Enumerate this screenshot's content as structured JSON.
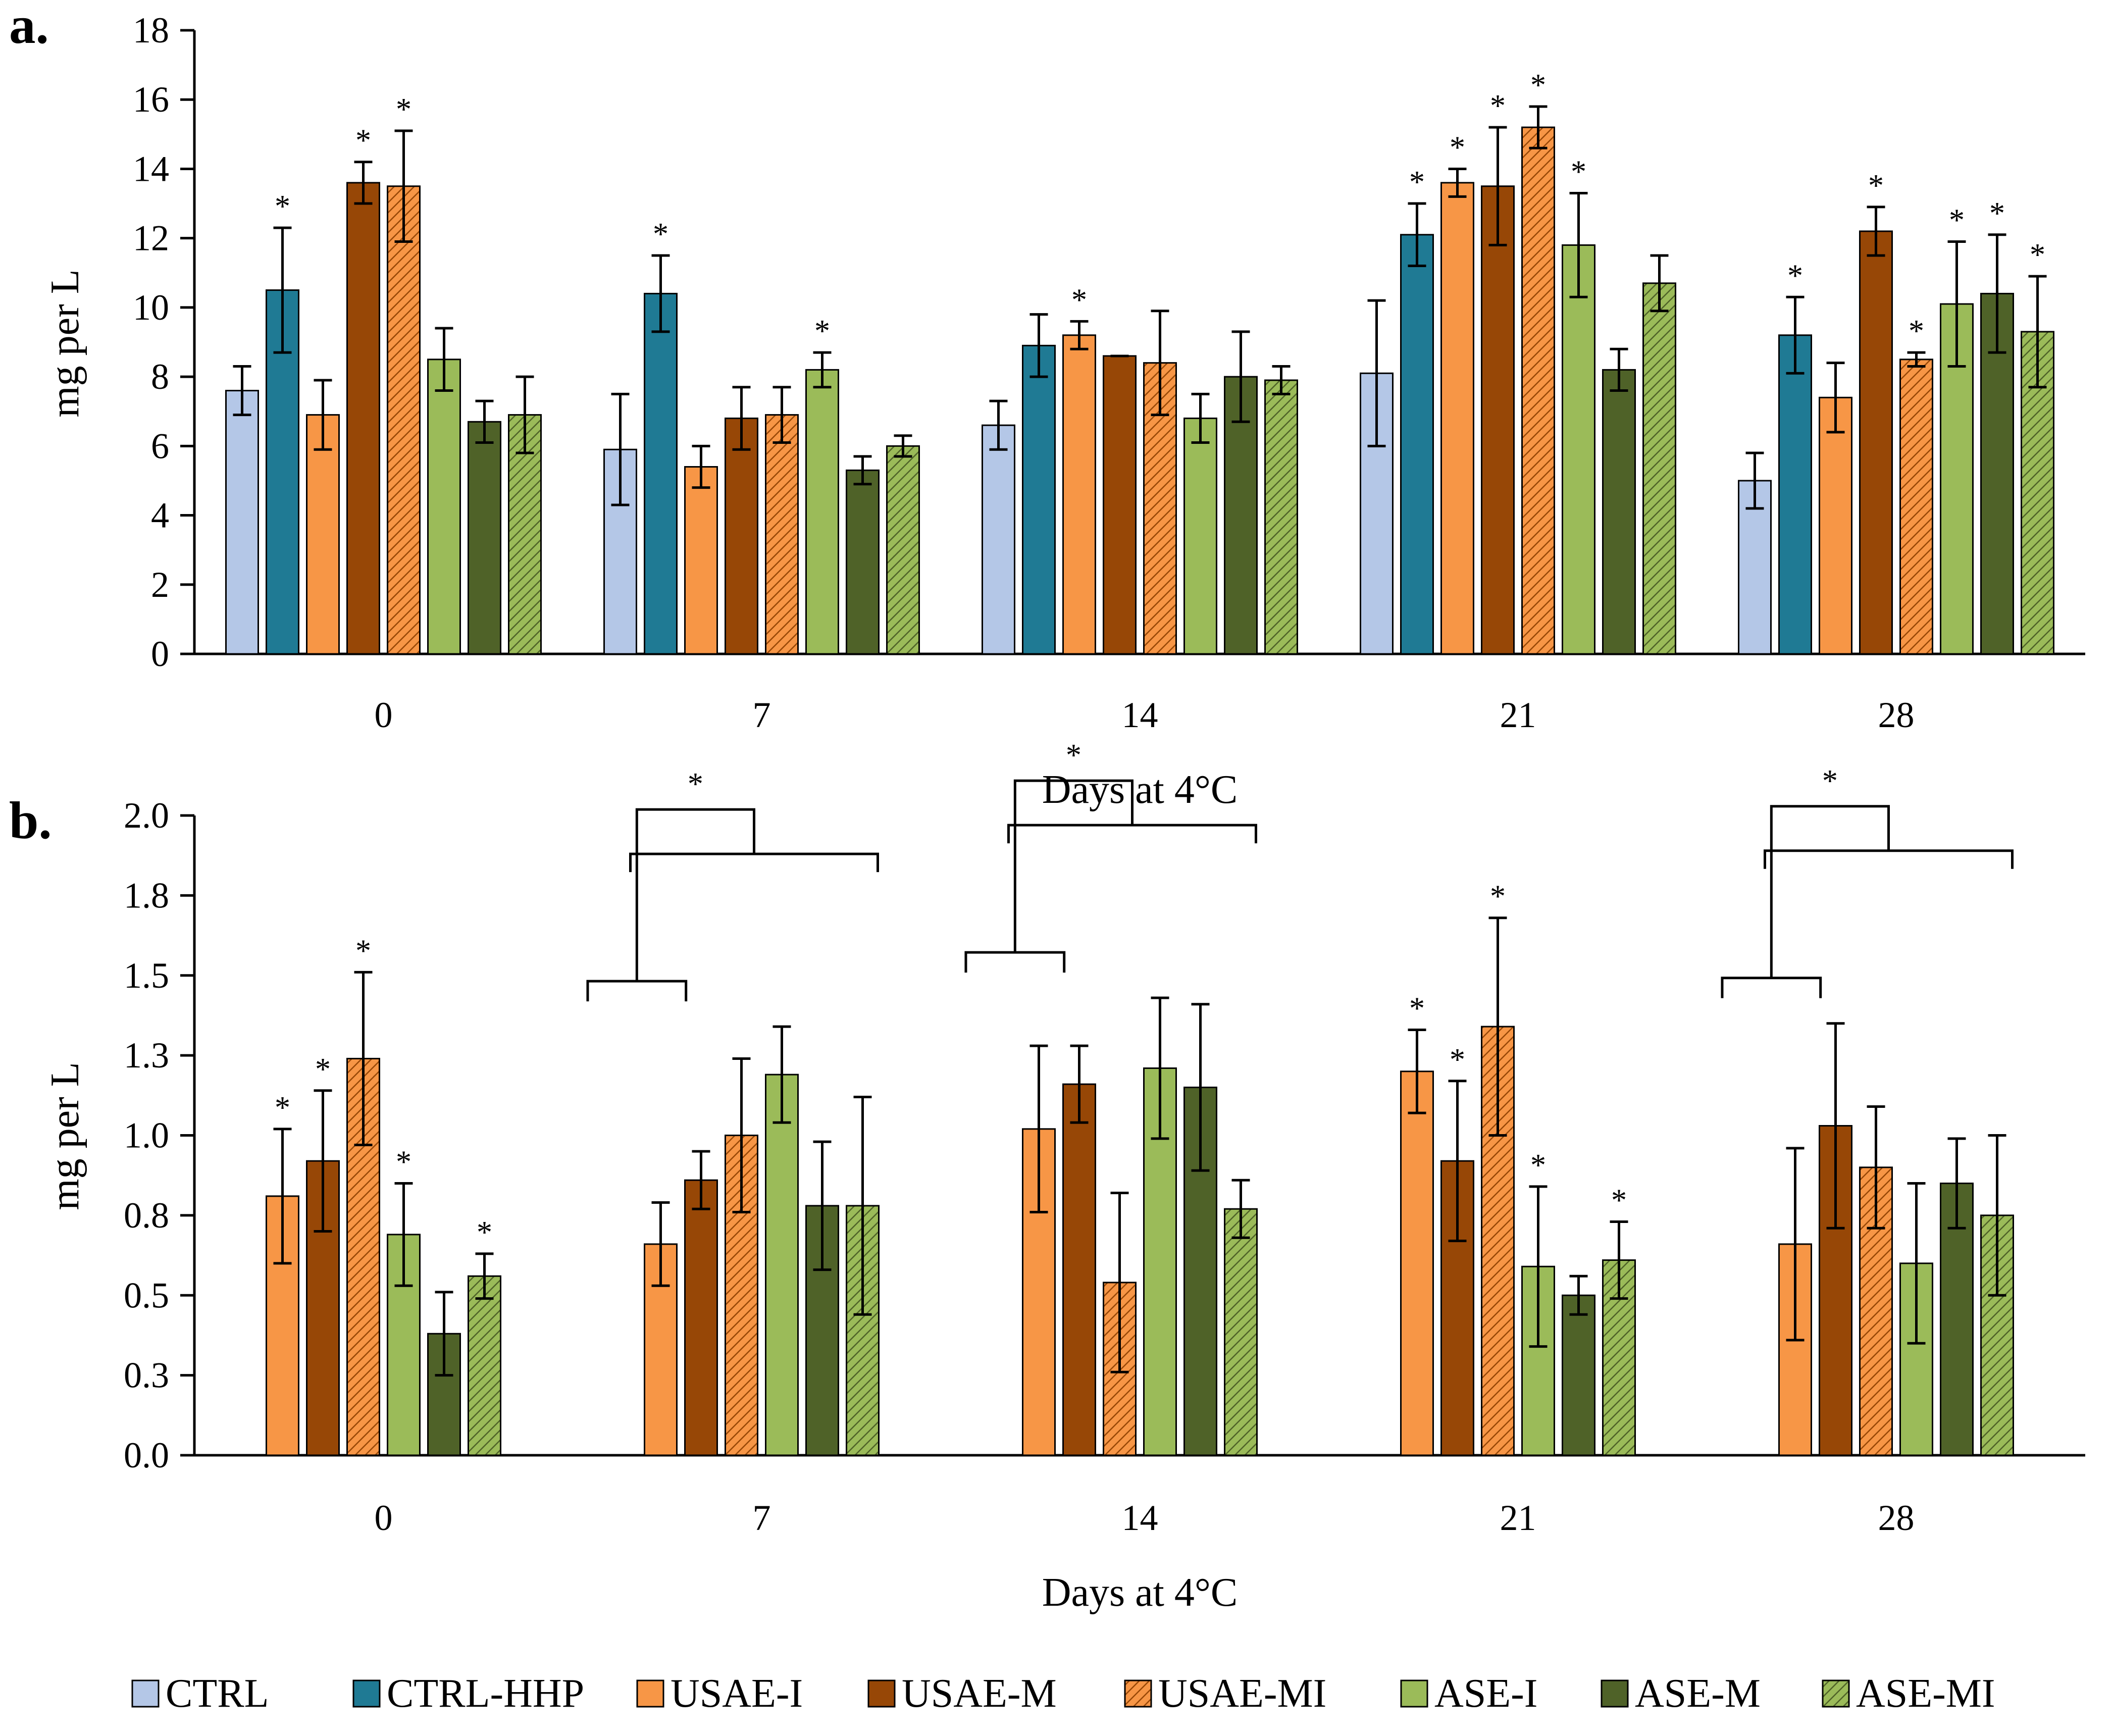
{
  "colors": {
    "CTRL": "#b4c7e7",
    "CTRL-HHP": "#1f7a94",
    "USAE-I": "#f79646",
    "USAE-M": "#974706",
    "USAE-MI": "#f79646",
    "ASE-I": "#9bbb59",
    "ASE-M": "#4f6228",
    "ASE-MI": "#9bbb59"
  },
  "legend": [
    "CTRL",
    "CTRL-HHP",
    "USAE-I",
    "USAE-M",
    "USAE-MI",
    "ASE-I",
    "ASE-M",
    "ASE-MI"
  ],
  "hatched": [
    "USAE-MI",
    "ASE-MI"
  ],
  "chart_data": [
    {
      "panel": "a.",
      "type": "bar",
      "ylabel": "mg per L",
      "xlabel": "Days at 4°C",
      "ylim": [
        0,
        18
      ],
      "yticks": [
        "0",
        "2",
        "4",
        "6",
        "8",
        "10",
        "12",
        "14",
        "16",
        "18"
      ],
      "categories": [
        "0",
        "7",
        "14",
        "21",
        "28"
      ],
      "series": [
        {
          "name": "CTRL",
          "values": [
            7.6,
            5.9,
            6.6,
            8.1,
            5.0
          ],
          "errors": [
            0.7,
            1.6,
            0.7,
            2.1,
            0.8
          ],
          "stars": [
            false,
            false,
            false,
            false,
            false
          ]
        },
        {
          "name": "CTRL-HHP",
          "values": [
            10.5,
            10.4,
            8.9,
            12.1,
            9.2
          ],
          "errors": [
            1.8,
            1.1,
            0.9,
            0.9,
            1.1
          ],
          "stars": [
            true,
            true,
            false,
            true,
            true
          ]
        },
        {
          "name": "USAE-I",
          "values": [
            6.9,
            5.4,
            9.2,
            13.6,
            7.4
          ],
          "errors": [
            1.0,
            0.6,
            0.4,
            0.4,
            1.0
          ],
          "stars": [
            false,
            false,
            true,
            true,
            false
          ]
        },
        {
          "name": "USAE-M",
          "values": [
            13.6,
            6.8,
            8.6,
            13.5,
            12.2
          ],
          "errors": [
            0.6,
            0.9,
            0.0,
            1.7,
            0.7
          ],
          "stars": [
            true,
            false,
            false,
            true,
            true
          ]
        },
        {
          "name": "USAE-MI",
          "values": [
            13.5,
            6.9,
            8.4,
            15.2,
            8.5
          ],
          "errors": [
            1.6,
            0.8,
            1.5,
            0.6,
            0.2
          ],
          "stars": [
            true,
            false,
            false,
            true,
            true
          ]
        },
        {
          "name": "ASE-I",
          "values": [
            8.5,
            8.2,
            6.8,
            11.8,
            10.1
          ],
          "errors": [
            0.9,
            0.5,
            0.7,
            1.5,
            1.8
          ],
          "stars": [
            false,
            true,
            false,
            true,
            true
          ]
        },
        {
          "name": "ASE-M",
          "values": [
            6.7,
            5.3,
            8.0,
            8.2,
            10.4
          ],
          "errors": [
            0.6,
            0.4,
            1.3,
            0.6,
            1.7
          ],
          "stars": [
            false,
            false,
            false,
            false,
            true
          ]
        },
        {
          "name": "ASE-MI",
          "values": [
            6.9,
            6.0,
            7.9,
            10.7,
            9.3
          ],
          "errors": [
            1.1,
            0.3,
            0.4,
            0.8,
            1.6
          ],
          "stars": [
            false,
            false,
            false,
            false,
            true
          ]
        }
      ]
    },
    {
      "panel": "b.",
      "type": "bar",
      "ylabel": "mg per L",
      "xlabel": "Days at 4°C",
      "ylim": [
        0,
        2.0
      ],
      "yticks": [
        "0.0",
        "0.3",
        "0.5",
        "0.8",
        "1.0",
        "1.3",
        "1.5",
        "1.8",
        "2.0"
      ],
      "categories": [
        "0",
        "7",
        "14",
        "21",
        "28"
      ],
      "series": [
        {
          "name": "USAE-I",
          "values": [
            0.81,
            0.66,
            1.02,
            1.2,
            0.66
          ],
          "errors": [
            0.21,
            0.13,
            0.26,
            0.13,
            0.3
          ],
          "stars": [
            true,
            false,
            false,
            true,
            false
          ]
        },
        {
          "name": "USAE-M",
          "values": [
            0.92,
            0.86,
            1.16,
            0.92,
            1.03
          ],
          "errors": [
            0.22,
            0.09,
            0.12,
            0.25,
            0.32
          ],
          "stars": [
            true,
            false,
            false,
            true,
            false
          ]
        },
        {
          "name": "USAE-MI",
          "values": [
            1.24,
            1.0,
            0.54,
            1.34,
            0.9
          ],
          "errors": [
            0.27,
            0.24,
            0.28,
            0.34,
            0.19
          ],
          "stars": [
            true,
            false,
            false,
            true,
            false
          ]
        },
        {
          "name": "ASE-I",
          "values": [
            0.69,
            1.19,
            1.21,
            0.59,
            0.6
          ],
          "errors": [
            0.16,
            0.15,
            0.22,
            0.25,
            0.25
          ],
          "stars": [
            true,
            false,
            false,
            true,
            false
          ]
        },
        {
          "name": "ASE-M",
          "values": [
            0.38,
            0.78,
            1.15,
            0.5,
            0.85
          ],
          "errors": [
            0.13,
            0.2,
            0.26,
            0.06,
            0.14
          ],
          "stars": [
            false,
            false,
            false,
            false,
            false
          ]
        },
        {
          "name": "ASE-MI",
          "values": [
            0.56,
            0.78,
            0.77,
            0.61,
            0.75
          ],
          "errors": [
            0.07,
            0.34,
            0.09,
            0.12,
            0.25
          ],
          "stars": [
            true,
            false,
            false,
            true,
            false
          ]
        }
      ],
      "brackets": [
        {
          "category": "7",
          "label": "*"
        },
        {
          "category": "14",
          "label": "*"
        },
        {
          "category": "28",
          "label": "*"
        }
      ]
    }
  ]
}
